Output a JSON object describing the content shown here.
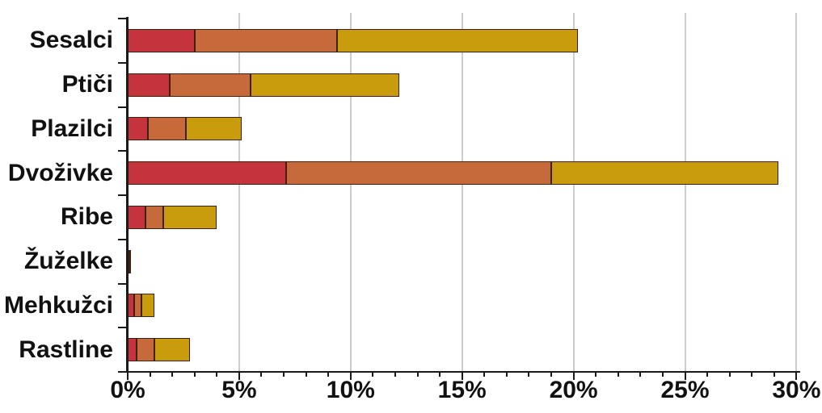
{
  "chart_data": {
    "type": "stacked_bar_horizontal",
    "orientation": "horizontal",
    "categories": [
      "Sesalci",
      "Ptiči",
      "Plazilci",
      "Dvoživke",
      "Ribe",
      "Žuželke",
      "Mehkužci",
      "Rastline"
    ],
    "series": [
      {
        "name": "red-segment",
        "color": "#C5343C",
        "values": [
          3.0,
          1.9,
          0.9,
          7.1,
          0.8,
          0.05,
          0.3,
          0.4
        ]
      },
      {
        "name": "orange-segment",
        "color": "#C66A3C",
        "values": [
          6.4,
          3.6,
          1.7,
          11.9,
          0.8,
          0.04,
          0.3,
          0.8
        ]
      },
      {
        "name": "gold-segment",
        "color": "#C99C0D",
        "values": [
          10.8,
          6.7,
          2.5,
          10.2,
          2.4,
          0.05,
          0.6,
          1.6
        ]
      }
    ],
    "totals": [
      20.2,
      12.2,
      5.1,
      29.2,
      4.0,
      0.14,
      1.2,
      2.8
    ],
    "x_axis": {
      "min": 0,
      "max": 30,
      "major_tick_step": 5,
      "minor_tick_step": 1,
      "tick_labels": [
        "0%",
        "5%",
        "10%",
        "15%",
        "20%",
        "25%",
        "30%"
      ]
    },
    "grid": "vertical lines at each 5% major tick",
    "legend": "none",
    "title": "",
    "colors": {
      "bar_border": "#40200F",
      "gridline": "#CCCCCC",
      "axis": "#1A1A1A",
      "background": "#FFFFFF",
      "text": "#111111"
    }
  }
}
